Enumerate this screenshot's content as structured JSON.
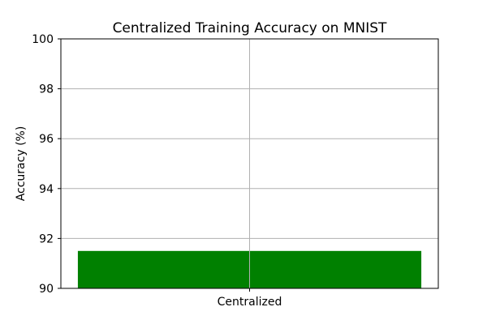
{
  "chart_data": {
    "type": "bar",
    "title": "Centralized Training Accuracy on MNIST",
    "xlabel": "",
    "ylabel": "Accuracy (%)",
    "categories": [
      "Centralized"
    ],
    "values": [
      91.5
    ],
    "ylim": [
      90,
      100
    ],
    "yticks": [
      "90",
      "92",
      "94",
      "96",
      "98",
      "100"
    ],
    "grid": true,
    "bar_color": "#008000",
    "grid_color": "#b0b0b0"
  }
}
